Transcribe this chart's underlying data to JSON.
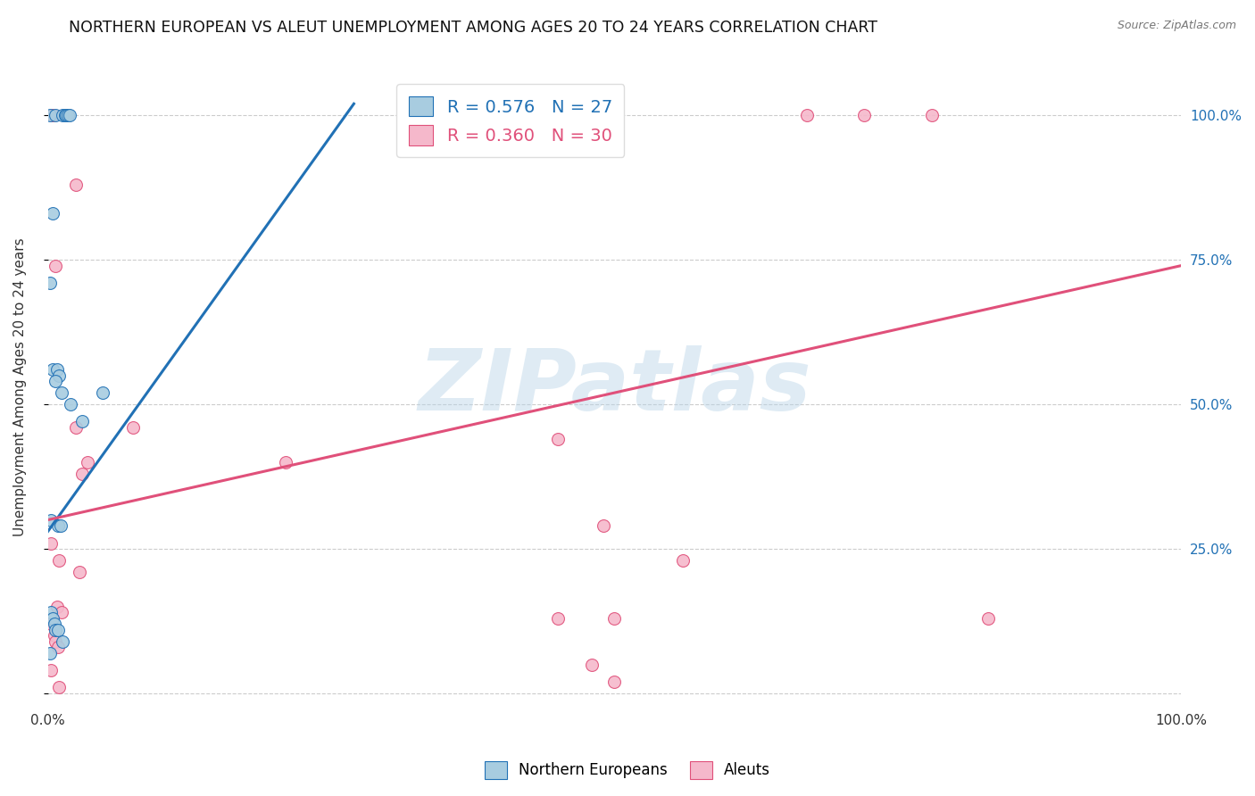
{
  "title": "NORTHERN EUROPEAN VS ALEUT UNEMPLOYMENT AMONG AGES 20 TO 24 YEARS CORRELATION CHART",
  "source": "Source: ZipAtlas.com",
  "ylabel": "Unemployment Among Ages 20 to 24 years",
  "watermark": "ZIPatlas",
  "legend_blue_R": "R = 0.576",
  "legend_blue_N": "N = 27",
  "legend_pink_R": "R = 0.360",
  "legend_pink_N": "N = 30",
  "blue_scatter": [
    [
      0.002,
      1.0
    ],
    [
      0.007,
      1.0
    ],
    [
      0.013,
      1.0
    ],
    [
      0.015,
      1.0
    ],
    [
      0.016,
      1.0
    ],
    [
      0.018,
      1.0
    ],
    [
      0.019,
      1.0
    ],
    [
      0.004,
      0.83
    ],
    [
      0.002,
      0.71
    ],
    [
      0.004,
      0.56
    ],
    [
      0.008,
      0.56
    ],
    [
      0.01,
      0.55
    ],
    [
      0.007,
      0.54
    ],
    [
      0.012,
      0.52
    ],
    [
      0.02,
      0.5
    ],
    [
      0.03,
      0.47
    ],
    [
      0.048,
      0.52
    ],
    [
      0.003,
      0.3
    ],
    [
      0.009,
      0.29
    ],
    [
      0.011,
      0.29
    ],
    [
      0.003,
      0.14
    ],
    [
      0.004,
      0.13
    ],
    [
      0.006,
      0.12
    ],
    [
      0.007,
      0.11
    ],
    [
      0.009,
      0.11
    ],
    [
      0.013,
      0.09
    ],
    [
      0.002,
      0.07
    ]
  ],
  "pink_scatter": [
    [
      0.004,
      1.0
    ],
    [
      0.67,
      1.0
    ],
    [
      0.72,
      1.0
    ],
    [
      0.78,
      1.0
    ],
    [
      0.025,
      0.88
    ],
    [
      0.007,
      0.74
    ],
    [
      0.025,
      0.46
    ],
    [
      0.035,
      0.4
    ],
    [
      0.03,
      0.38
    ],
    [
      0.075,
      0.46
    ],
    [
      0.21,
      0.4
    ],
    [
      0.45,
      0.44
    ],
    [
      0.49,
      0.29
    ],
    [
      0.56,
      0.23
    ],
    [
      0.003,
      0.26
    ],
    [
      0.01,
      0.23
    ],
    [
      0.028,
      0.21
    ],
    [
      0.008,
      0.15
    ],
    [
      0.012,
      0.14
    ],
    [
      0.003,
      0.12
    ],
    [
      0.006,
      0.1
    ],
    [
      0.007,
      0.09
    ],
    [
      0.009,
      0.08
    ],
    [
      0.45,
      0.13
    ],
    [
      0.83,
      0.13
    ],
    [
      0.5,
      0.13
    ],
    [
      0.48,
      0.05
    ],
    [
      0.003,
      0.04
    ],
    [
      0.5,
      0.02
    ],
    [
      0.01,
      0.01
    ]
  ],
  "blue_line_x": [
    0.0,
    0.27
  ],
  "blue_line_y": [
    0.28,
    1.02
  ],
  "pink_line_x": [
    0.0,
    1.0
  ],
  "pink_line_y": [
    0.3,
    0.74
  ],
  "blue_color": "#a8cce0",
  "pink_color": "#f5b8cb",
  "blue_line_color": "#2171b5",
  "pink_line_color": "#e0507a",
  "scatter_size": 100,
  "background_color": "#ffffff",
  "grid_color": "#cccccc",
  "xlim": [
    0.0,
    1.0
  ],
  "ylim": [
    -0.02,
    1.08
  ],
  "xticks": [
    0.0,
    0.25,
    0.5,
    0.75,
    1.0
  ],
  "xtick_labels": [
    "0.0%",
    "",
    "",
    "",
    "100.0%"
  ],
  "ytick_positions": [
    0.0,
    0.25,
    0.5,
    0.75,
    1.0
  ],
  "ytick_labels_right": [
    "",
    "25.0%",
    "50.0%",
    "75.0%",
    "100.0%"
  ]
}
